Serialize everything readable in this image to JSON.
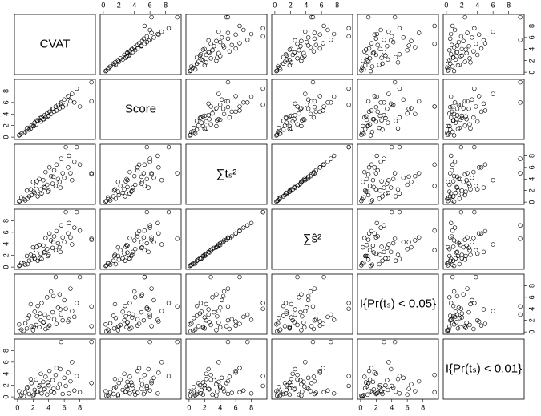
{
  "chart_data": {
    "type": "scatter",
    "series": [
      {
        "name": "CVAT",
        "values": [
          0.5,
          1.0,
          1.2,
          1.5,
          1.8,
          2.0,
          2.2,
          2.4,
          2.6,
          2.8,
          3.0,
          3.1,
          3.3,
          3.5,
          3.6,
          3.8,
          4.0,
          4.1,
          4.3,
          4.5,
          4.7,
          4.9,
          5.0,
          5.2,
          5.4,
          5.6,
          5.8,
          6.0,
          6.2,
          6.5,
          6.8,
          7.0,
          7.3,
          7.6,
          8.0,
          9.5,
          9.5,
          0.8,
          1.3,
          2.1,
          2.9,
          3.4,
          0.3,
          1.7,
          2.5,
          3.9,
          4.6,
          5.5,
          6.6,
          0.2
        ]
      },
      {
        "name": "Score",
        "values": [
          0.6,
          0.9,
          1.4,
          1.3,
          2.0,
          1.9,
          2.5,
          2.2,
          2.8,
          3.0,
          2.7,
          3.4,
          3.1,
          3.8,
          3.4,
          4.1,
          3.7,
          4.4,
          4.0,
          4.9,
          4.4,
          5.3,
          4.6,
          5.6,
          5.0,
          6.0,
          5.2,
          6.5,
          5.6,
          7.1,
          6.2,
          7.5,
          6.0,
          8.4,
          5.3,
          9.5,
          6.2,
          0.7,
          1.6,
          1.9,
          3.3,
          3.1,
          0.4,
          1.5,
          2.9,
          3.6,
          4.9,
          5.8,
          7.0,
          0.3
        ]
      },
      {
        "name": "∑tₛ²",
        "values": [
          0.8,
          0.3,
          2.0,
          1.0,
          1.2,
          3.5,
          1.6,
          2.8,
          1.0,
          4.0,
          2.2,
          1.5,
          3.8,
          2.5,
          5.2,
          3.0,
          2.0,
          6.0,
          4.5,
          3.2,
          5.5,
          2.8,
          6.5,
          4.0,
          3.5,
          7.5,
          5.0,
          4.2,
          9.5,
          6.0,
          5.0,
          3.8,
          7.0,
          9.5,
          6.5,
          5.0,
          4.8,
          0.5,
          0.6,
          1.8,
          1.4,
          2.6,
          0.2,
          2.2,
          3.6,
          1.8,
          4.4,
          2.5,
          8.0,
          0.1
        ]
      },
      {
        "name": "∑ŝ²",
        "values": [
          0.7,
          0.4,
          1.9,
          1.1,
          1.3,
          3.4,
          1.5,
          2.9,
          1.1,
          3.8,
          2.3,
          1.4,
          3.7,
          2.6,
          5.0,
          3.1,
          2.1,
          5.8,
          4.6,
          3.3,
          5.3,
          2.9,
          6.2,
          4.1,
          3.4,
          7.2,
          5.1,
          4.3,
          9.5,
          5.8,
          5.1,
          3.9,
          6.8,
          9.5,
          6.3,
          4.9,
          4.7,
          0.6,
          0.5,
          1.9,
          1.5,
          2.5,
          0.3,
          2.1,
          3.5,
          1.9,
          4.3,
          2.6,
          7.6,
          0.2
        ]
      },
      {
        "name": "I{Pr(tₛ) < 0.05}",
        "values": [
          0.4,
          1.5,
          0.6,
          2.8,
          1.0,
          0.3,
          3.5,
          1.2,
          4.5,
          0.8,
          2.0,
          5.0,
          1.6,
          3.0,
          0.5,
          6.0,
          2.5,
          1.1,
          7.0,
          3.4,
          2.2,
          9.5,
          1.4,
          4.2,
          6.5,
          3.0,
          2.0,
          5.5,
          4.0,
          1.8,
          7.5,
          3.6,
          2.6,
          5.0,
          9.5,
          4.4,
          1.0,
          0.2,
          2.4,
          0.9,
          3.2,
          1.7,
          0.1,
          4.8,
          2.7,
          0.7,
          6.2,
          3.9,
          2.1,
          1.3
        ]
      },
      {
        "name": "I{Pr(tₛ) < 0.01}",
        "values": [
          0.3,
          0.8,
          1.5,
          0.5,
          2.4,
          0.2,
          1.2,
          3.0,
          0.9,
          1.8,
          4.0,
          0.6,
          2.6,
          1.4,
          3.5,
          0.4,
          2.0,
          4.5,
          1.0,
          2.9,
          0.7,
          3.8,
          5.0,
          1.6,
          2.2,
          9.5,
          0.5,
          3.3,
          1.9,
          4.2,
          2.7,
          6.0,
          1.1,
          3.6,
          0.8,
          9.5,
          2.4,
          0.1,
          1.7,
          0.4,
          2.0,
          1.3,
          0.2,
          3.1,
          0.9,
          2.5,
          1.4,
          4.8,
          0.6,
          1.0
        ]
      }
    ],
    "xlim": [
      -0.4,
      10.0
    ],
    "ylim": [
      -0.4,
      10.0
    ],
    "xticks": [
      0,
      2,
      4,
      6,
      8
    ],
    "yticks": [
      0,
      2,
      4,
      6,
      8
    ]
  }
}
